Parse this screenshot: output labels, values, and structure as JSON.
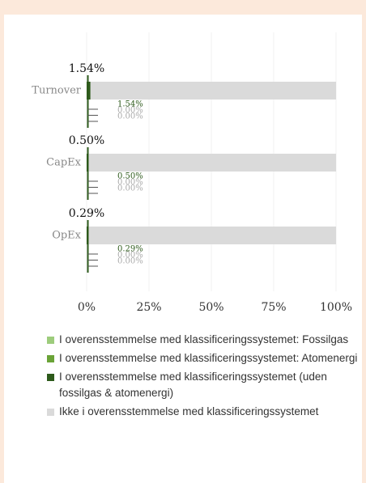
{
  "chart_data": {
    "type": "stacked-bar-horizontal",
    "categories": [
      "Turnover",
      "CapEx",
      "OpEx"
    ],
    "series": [
      {
        "name": "I overensstemmelse med klassificeringssystemet: Fossilgas",
        "color": "#9dcc7c",
        "values": [
          0,
          0,
          0
        ],
        "value_labels": [
          "0.00%",
          "0.00%",
          "0.00%"
        ]
      },
      {
        "name": "I overensstemmelse med klassificeringssystemet: Atomenergi",
        "color": "#6aa337",
        "values": [
          0,
          0,
          0
        ],
        "value_labels": [
          "0.00%",
          "0.00%",
          "0.00%"
        ]
      },
      {
        "name": "I overensstemmelse med klassificeringssystemet (uden fossilgas & atomenergi)",
        "color": "#2d5a1b",
        "values": [
          1.54,
          0.5,
          0.29
        ],
        "value_labels": [
          "1.54%",
          "0.50%",
          "0.29%"
        ]
      },
      {
        "name": "Ikke i overensstemmelse med klassificeringssystemet",
        "color": "#dadada",
        "values": [
          98.46,
          99.5,
          99.71
        ]
      }
    ],
    "aligned_totals": [
      1.54,
      0.5,
      0.29
    ],
    "aligned_total_labels": [
      "1.54%",
      "0.50%",
      "0.29%"
    ],
    "xlim": [
      0,
      100
    ],
    "xticks": [
      {
        "value": 0,
        "label": "0%"
      },
      {
        "value": 25,
        "label": "25%"
      },
      {
        "value": 50,
        "label": "50%"
      },
      {
        "value": 75,
        "label": "75%"
      },
      {
        "value": 100,
        "label": "100%"
      }
    ],
    "grid": true
  }
}
